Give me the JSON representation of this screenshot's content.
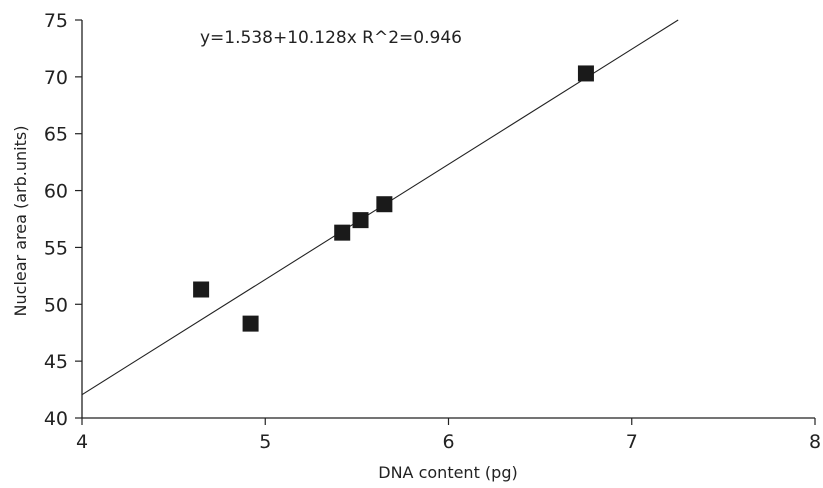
{
  "chart_data": {
    "type": "scatter",
    "annotation": "y=1.538+10.128x R^2=0.946",
    "xlabel": "DNA content (pg)",
    "ylabel": "Nuclear area (arb.units)",
    "xlim": [
      4,
      8
    ],
    "ylim": [
      40,
      75
    ],
    "x_ticks": [
      4,
      5,
      6,
      7,
      8
    ],
    "y_ticks": [
      40,
      45,
      50,
      55,
      60,
      65,
      70,
      75
    ],
    "grid": false,
    "series": [
      {
        "x": [
          4.65,
          4.92,
          5.42,
          5.52,
          5.65,
          6.75
        ],
        "y": [
          51.3,
          48.3,
          56.3,
          57.4,
          58.8,
          70.3
        ]
      }
    ],
    "trendline": {
      "intercept": 1.538,
      "slope": 10.128
    }
  }
}
